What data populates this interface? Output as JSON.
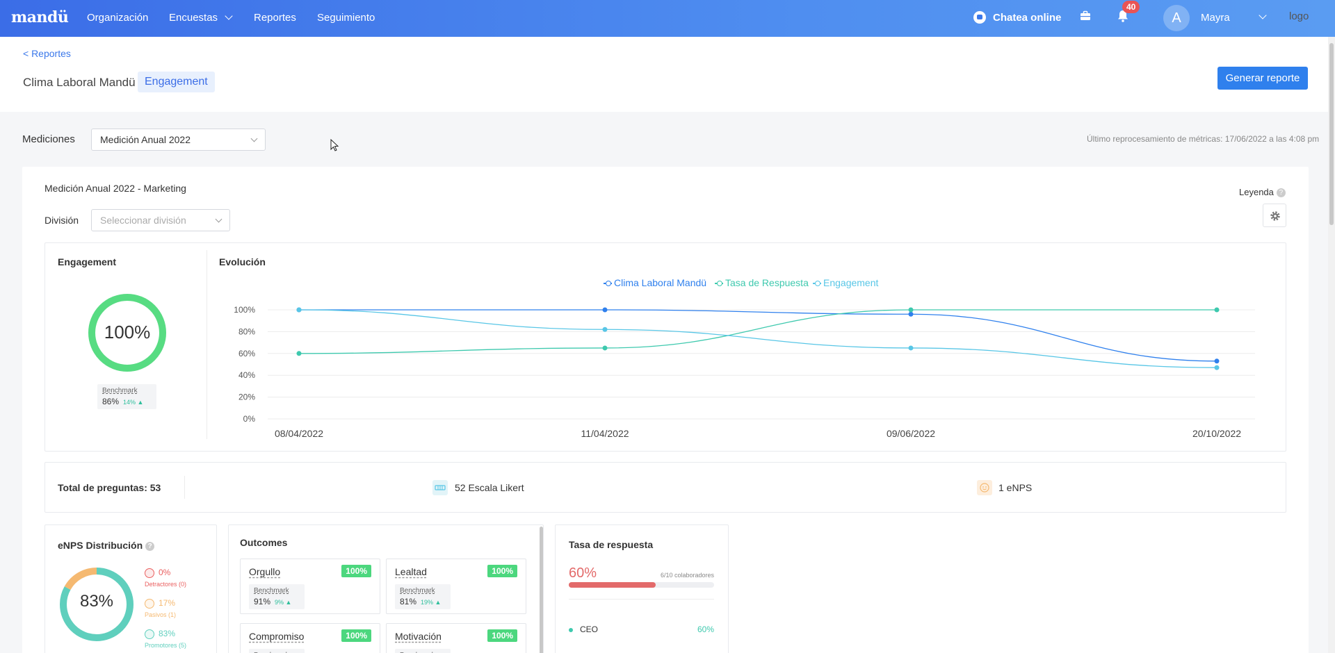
{
  "nav": {
    "logo": "mandü",
    "items": [
      {
        "label": "Organización"
      },
      {
        "label": "Encuestas"
      },
      {
        "label": "Reportes"
      },
      {
        "label": "Seguimiento"
      }
    ],
    "chat_label": "Chatea online",
    "notifications_count": "40",
    "avatar_letter": "A",
    "user_name": "Mayra",
    "logo_alt": "logo"
  },
  "header": {
    "back_link": "< Reportes",
    "title": "Clima Laboral Mandü",
    "tag": "Engagement",
    "generate_button": "Generar reporte"
  },
  "filters": {
    "mediciones_label": "Mediciones",
    "mediciones_value": "Medición Anual 2022",
    "last_update": "Último reprocesamiento de métricas: 17/06/2022 a las 4:08 pm"
  },
  "main_card": {
    "title": "Medición Anual 2022 - Marketing",
    "legend_label": "Leyenda",
    "division_label": "División",
    "division_placeholder": "Seleccionar división"
  },
  "engagement": {
    "title": "Engagement",
    "value_text": "100%",
    "value": 100,
    "color": "#57dc82",
    "benchmark_label": "Benchmark",
    "benchmark_value": "86%",
    "benchmark_delta": "14% ▲"
  },
  "evolution": {
    "title": "Evolución"
  },
  "chart_data": {
    "type": "line",
    "x": [
      "08/04/2022",
      "11/04/2022",
      "09/06/2022",
      "20/10/2022"
    ],
    "yticks": [
      "100%",
      "80%",
      "60%",
      "40%",
      "20%",
      "0%"
    ],
    "ylim": [
      0,
      100
    ],
    "grid": true,
    "legend_position": "top-center",
    "series": [
      {
        "name": "Clima Laboral Mandü",
        "color": "#2f80ed",
        "values": [
          100,
          100,
          96,
          53
        ]
      },
      {
        "name": "Tasa de Respuesta",
        "color": "#3ec9ae",
        "values": [
          60,
          65,
          100,
          100
        ]
      },
      {
        "name": "Engagement",
        "color": "#58c6e6",
        "values": [
          100,
          82,
          65,
          47
        ]
      }
    ]
  },
  "questions": {
    "total": "Total de preguntas: 53",
    "likert": "52 Escala Likert",
    "enps": "1 eNPS"
  },
  "enps": {
    "title": "eNPS Distribución",
    "value_text": "83%",
    "segments": [
      {
        "name": "Detractores",
        "pct": 0,
        "pct_text": "0%",
        "count_text": "Detractores (0)",
        "color": "#ea5f5f"
      },
      {
        "name": "Pasivos",
        "pct": 17,
        "pct_text": "17%",
        "count_text": "Pasivos (1)",
        "color": "#f5b971"
      },
      {
        "name": "Promotores",
        "pct": 83,
        "pct_text": "83%",
        "count_text": "Promotores (5)",
        "color": "#5fcfbd"
      }
    ]
  },
  "outcomes": {
    "title": "Outcomes",
    "benchmark_label": "Benchmark",
    "items": [
      {
        "name": "Orgullo",
        "pct": "100%",
        "bench": "91%",
        "delta": "9% ▲"
      },
      {
        "name": "Lealtad",
        "pct": "100%",
        "bench": "81%",
        "delta": "19% ▲"
      },
      {
        "name": "Compromiso",
        "pct": "100%"
      },
      {
        "name": "Motivación",
        "pct": "100%"
      }
    ]
  },
  "response_rate": {
    "title": "Tasa de respuesta",
    "value_text": "60%",
    "value": 60,
    "detail": "6/10 colaboradores",
    "bar_color": "#e36a6a",
    "rows": [
      {
        "name": "CEO",
        "pct": "60%"
      }
    ]
  }
}
